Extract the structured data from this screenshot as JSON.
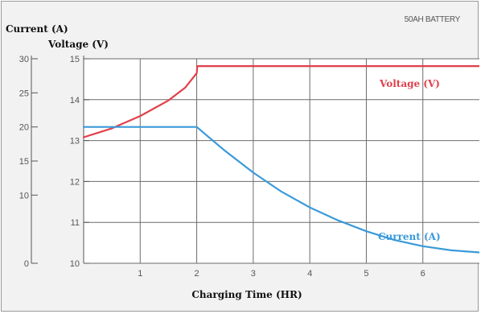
{
  "chart_data": {
    "type": "line",
    "title": "50AH BATTERY",
    "xlabel": "Charging Time (HR)",
    "ylabel_left": "Current (A)",
    "ylabel_right": "Voltage (V)",
    "xlim": [
      0,
      7
    ],
    "x_ticks": [
      1,
      2,
      3,
      4,
      5,
      6
    ],
    "current_axis": {
      "range": [
        0,
        30
      ],
      "ticks": [
        0,
        10,
        15,
        20,
        25,
        30
      ]
    },
    "voltage_axis": {
      "range": [
        10,
        15
      ],
      "ticks": [
        10,
        11,
        12,
        13,
        14,
        15
      ]
    },
    "grid": true,
    "series": [
      {
        "name": "Voltage (V)",
        "axis": "voltage",
        "color": "#e0404b",
        "x": [
          0,
          0.5,
          1.0,
          1.5,
          1.8,
          2.0,
          2.01,
          7.0
        ],
        "y": [
          13.08,
          13.3,
          13.6,
          13.98,
          14.3,
          14.65,
          14.82,
          14.82
        ]
      },
      {
        "name": "Current (A)",
        "axis": "current",
        "color": "#3a9ad9",
        "x": [
          0,
          2.0,
          2.5,
          3.0,
          3.5,
          4.0,
          4.5,
          5.0,
          5.5,
          6.0,
          6.5,
          7.0
        ],
        "y": [
          20,
          20,
          16.5,
          13.3,
          10.5,
          8.2,
          6.3,
          4.7,
          3.4,
          2.5,
          1.9,
          1.6
        ]
      }
    ]
  }
}
